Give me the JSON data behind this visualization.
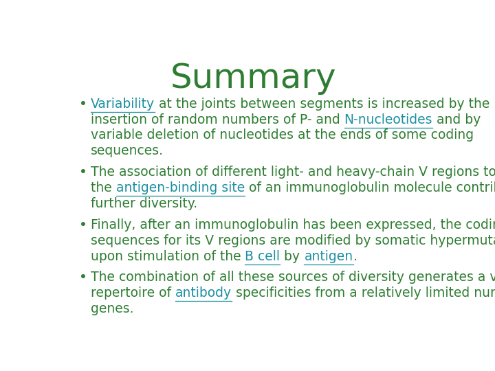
{
  "title": "Summary",
  "title_color": "#2E7D32",
  "title_fontsize": 36,
  "bg_color": "#FFFFFF",
  "text_color": "#2E7D32",
  "link_color": "#1a8fa0",
  "bullet_points": [
    {
      "segments": [
        {
          "text": "Variability",
          "underline": true,
          "link": true
        },
        {
          "text": " at the joints between segments is increased by the\ninsertion of random numbers of P- and ",
          "underline": false,
          "link": false
        },
        {
          "text": "N-nucleotides",
          "underline": true,
          "link": true
        },
        {
          "text": " and by\nvariable deletion of nucleotides at the ends of some coding\nsequences.",
          "underline": false,
          "link": false
        }
      ]
    },
    {
      "segments": [
        {
          "text": "The association of different light- and heavy-chain V regions to form\nthe ",
          "underline": false,
          "link": false
        },
        {
          "text": "antigen-binding site",
          "underline": true,
          "link": true
        },
        {
          "text": " of an immunoglobulin molecule contributes\nfurther diversity.",
          "underline": false,
          "link": false
        }
      ]
    },
    {
      "segments": [
        {
          "text": "Finally, after an immunoglobulin has been expressed, the coding\nsequences for its V regions are modified by somatic hypermutation\nupon stimulation of the ",
          "underline": false,
          "link": false
        },
        {
          "text": "B cell",
          "underline": true,
          "link": true
        },
        {
          "text": " by ",
          "underline": false,
          "link": false
        },
        {
          "text": "antigen",
          "underline": true,
          "link": true
        },
        {
          "text": ".",
          "underline": false,
          "link": false
        }
      ]
    },
    {
      "segments": [
        {
          "text": "The combination of all these sources of diversity generates a vast\nrepertoire of ",
          "underline": false,
          "link": false
        },
        {
          "text": "antibody",
          "underline": true,
          "link": true
        },
        {
          "text": " specificities from a relatively limited number of\ngenes.",
          "underline": false,
          "link": false
        }
      ]
    }
  ],
  "figsize": [
    7.2,
    5.4
  ],
  "dpi": 100
}
